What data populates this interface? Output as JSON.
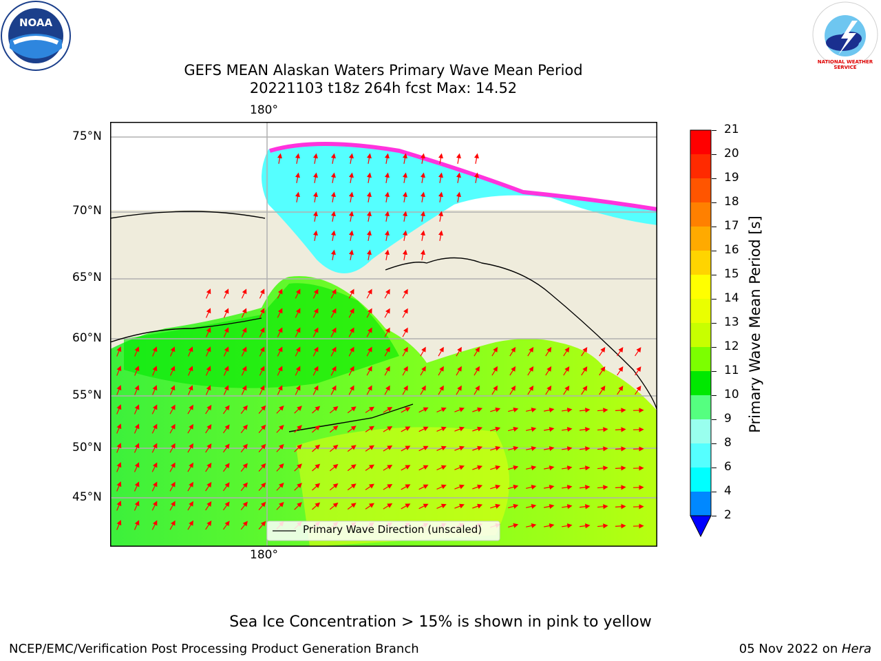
{
  "header": {
    "title_line1": "GEFS MEAN Alaskan Waters Primary Wave Mean Period",
    "title_line2": "20221103 t18z 264h fcst   Max: 14.52",
    "left_logo_text": "NOAA",
    "right_logo_text": "NATIONAL WEATHER SERVICE"
  },
  "map": {
    "top_lon_label": "180°",
    "bottom_lon_label": "180°",
    "lat_labels": [
      "75°N",
      "70°N",
      "65°N",
      "60°N",
      "55°N",
      "50°N",
      "45°N"
    ],
    "legend_text": "Primary Wave Direction (unscaled)",
    "colors": {
      "land": "#efecdc",
      "arrow": "#ff0000",
      "grid": "#b0b0b0"
    }
  },
  "colorbar": {
    "label": "Primary Wave Mean Period [s]",
    "ticks": [
      "21",
      "20",
      "19",
      "18",
      "17",
      "16",
      "15",
      "14",
      "13",
      "12",
      "11",
      "10",
      "9",
      "8",
      "6",
      "4",
      "2"
    ],
    "colors": [
      "#ff0000",
      "#ff2a00",
      "#ff5500",
      "#ff8000",
      "#ffaa00",
      "#ffd400",
      "#ffff00",
      "#eaff00",
      "#c8ff00",
      "#7cff00",
      "#00e800",
      "#55ff80",
      "#99ffee",
      "#55ffff",
      "#00ffff",
      "#0088ff",
      "#0000ff"
    ]
  },
  "footer": {
    "ice_note": "Sea Ice Concentration > 15% is shown in pink to yellow",
    "left": "NCEP/EMC/Verification Post Processing Product Generation Branch",
    "right_prefix": "05 Nov 2022 on ",
    "right_machine": "Hera"
  }
}
